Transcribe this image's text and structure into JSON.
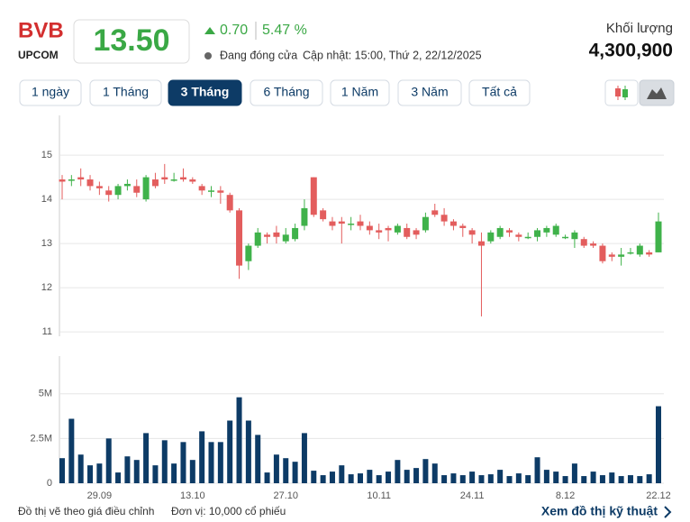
{
  "header": {
    "symbol": "BVB",
    "exchange": "UPCOM",
    "price": "13.50",
    "change": "0.70",
    "change_pct": "5.47 %",
    "status": "Đang đóng cửa",
    "updated": "Cập nhật: 15:00, Thứ 2, 22/12/2025",
    "volume_label": "Khối lượng",
    "volume": "4,300,900"
  },
  "ranges": [
    "1 ngày",
    "1 Tháng",
    "3 Tháng",
    "6 Tháng",
    "1 Năm",
    "3 Năm",
    "Tất cả"
  ],
  "active_range": 2,
  "footer": {
    "note": "Đồ thị vẽ theo giá điều chỉnh",
    "unit": "Đơn vị: 10,000 cổ phiếu",
    "link": "Xem đồ thị kỹ thuật"
  },
  "chart_data": [
    {
      "type": "candlestick",
      "up_color": "#3fb24a",
      "down_color": "#e35d5d",
      "grid": true,
      "ylim": [
        10.9,
        15.9
      ],
      "yticks": [
        11,
        12,
        13,
        14,
        15
      ],
      "open": [
        14.45,
        14.45,
        14.5,
        14.45,
        14.3,
        14.2,
        14.1,
        14.3,
        14.3,
        14.0,
        14.45,
        14.5,
        14.45,
        14.5,
        14.45,
        14.3,
        14.2,
        14.2,
        14.1,
        13.75,
        12.6,
        12.95,
        13.2,
        13.25,
        13.05,
        13.1,
        13.4,
        14.5,
        13.75,
        13.5,
        13.5,
        13.45,
        13.5,
        13.4,
        13.3,
        13.35,
        13.25,
        13.35,
        13.3,
        13.3,
        13.75,
        13.65,
        13.5,
        13.4,
        13.3,
        13.05,
        13.05,
        13.15,
        13.3,
        13.2,
        13.15,
        13.15,
        13.25,
        13.2,
        13.15,
        13.1,
        13.1,
        13.0,
        12.95,
        12.75,
        12.7,
        12.8,
        12.75,
        12.8,
        12.8
      ],
      "high": [
        14.55,
        14.55,
        14.7,
        14.55,
        14.4,
        14.3,
        14.35,
        14.45,
        14.45,
        14.55,
        14.6,
        14.8,
        14.6,
        14.7,
        14.5,
        14.35,
        14.3,
        14.3,
        14.15,
        13.8,
        13.0,
        13.35,
        13.25,
        13.4,
        13.35,
        13.45,
        14.0,
        14.5,
        13.8,
        13.6,
        13.6,
        13.6,
        13.65,
        13.5,
        13.45,
        13.4,
        13.45,
        13.45,
        13.35,
        13.7,
        13.9,
        13.8,
        13.55,
        13.45,
        13.35,
        13.25,
        13.3,
        13.4,
        13.35,
        13.25,
        13.25,
        13.35,
        13.4,
        13.45,
        13.2,
        13.3,
        13.15,
        13.05,
        13.0,
        12.8,
        12.9,
        12.9,
        13.0,
        12.85,
        13.7
      ],
      "low": [
        14.0,
        14.3,
        14.3,
        14.2,
        14.1,
        13.95,
        14.0,
        14.2,
        14.05,
        13.95,
        14.25,
        14.35,
        14.4,
        14.4,
        14.35,
        14.1,
        14.05,
        13.9,
        13.7,
        12.2,
        12.4,
        12.9,
        13.0,
        13.0,
        13.0,
        13.05,
        13.3,
        13.6,
        13.5,
        13.3,
        13.0,
        13.3,
        13.3,
        13.2,
        13.1,
        13.05,
        13.2,
        13.1,
        13.1,
        13.25,
        13.6,
        13.4,
        13.3,
        13.15,
        13.0,
        11.35,
        13.0,
        13.1,
        13.15,
        13.05,
        13.1,
        13.05,
        13.15,
        13.15,
        13.1,
        12.9,
        12.9,
        12.9,
        12.55,
        12.6,
        12.5,
        12.75,
        12.7,
        12.7,
        12.8
      ],
      "close": [
        14.4,
        14.45,
        14.45,
        14.3,
        14.25,
        14.1,
        14.3,
        14.35,
        14.15,
        14.5,
        14.3,
        14.45,
        14.45,
        14.45,
        14.4,
        14.2,
        14.2,
        14.15,
        13.75,
        12.5,
        12.95,
        13.25,
        13.15,
        13.15,
        13.2,
        13.35,
        13.8,
        13.65,
        13.55,
        13.4,
        13.45,
        13.45,
        13.4,
        13.3,
        13.25,
        13.3,
        13.4,
        13.15,
        13.2,
        13.6,
        13.65,
        13.5,
        13.4,
        13.35,
        13.2,
        12.95,
        13.25,
        13.35,
        13.25,
        13.15,
        13.15,
        13.3,
        13.35,
        13.4,
        13.15,
        13.25,
        12.95,
        12.95,
        12.6,
        12.7,
        12.75,
        12.8,
        12.95,
        12.75,
        13.5
      ]
    },
    {
      "type": "bar",
      "color": "#0d3b66",
      "grid": true,
      "categories": [
        null,
        null,
        null,
        null,
        "29.09",
        null,
        null,
        null,
        null,
        null,
        null,
        null,
        null,
        null,
        "13.10",
        null,
        null,
        null,
        null,
        null,
        null,
        null,
        null,
        null,
        "27.10",
        null,
        null,
        null,
        null,
        null,
        null,
        null,
        null,
        null,
        "10.11",
        null,
        null,
        null,
        null,
        null,
        null,
        null,
        null,
        null,
        "24.11",
        null,
        null,
        null,
        null,
        null,
        null,
        null,
        null,
        null,
        "8.12",
        null,
        null,
        null,
        null,
        null,
        null,
        null,
        null,
        null,
        "22.12"
      ],
      "ylim": [
        0,
        7100000
      ],
      "yticks": [
        0,
        {
          "value": 2500000,
          "label": "2.5M"
        },
        {
          "value": 5000000,
          "label": "5M"
        }
      ],
      "values": [
        1400000,
        3600000,
        1600000,
        1000000,
        1100000,
        2500000,
        600000,
        1500000,
        1300000,
        2800000,
        1000000,
        2400000,
        1100000,
        2300000,
        1300000,
        2900000,
        2300000,
        2300000,
        3500000,
        4800000,
        3500000,
        2700000,
        600000,
        1600000,
        1400000,
        1200000,
        2800000,
        700000,
        450000,
        650000,
        1000000,
        500000,
        550000,
        750000,
        450000,
        650000,
        1300000,
        750000,
        850000,
        1350000,
        1100000,
        450000,
        550000,
        450000,
        650000,
        450000,
        500000,
        750000,
        400000,
        550000,
        450000,
        1450000,
        750000,
        650000,
        400000,
        1100000,
        400000,
        650000,
        450000,
        600000,
        400000,
        450000,
        400000,
        500000,
        4300900
      ]
    }
  ]
}
